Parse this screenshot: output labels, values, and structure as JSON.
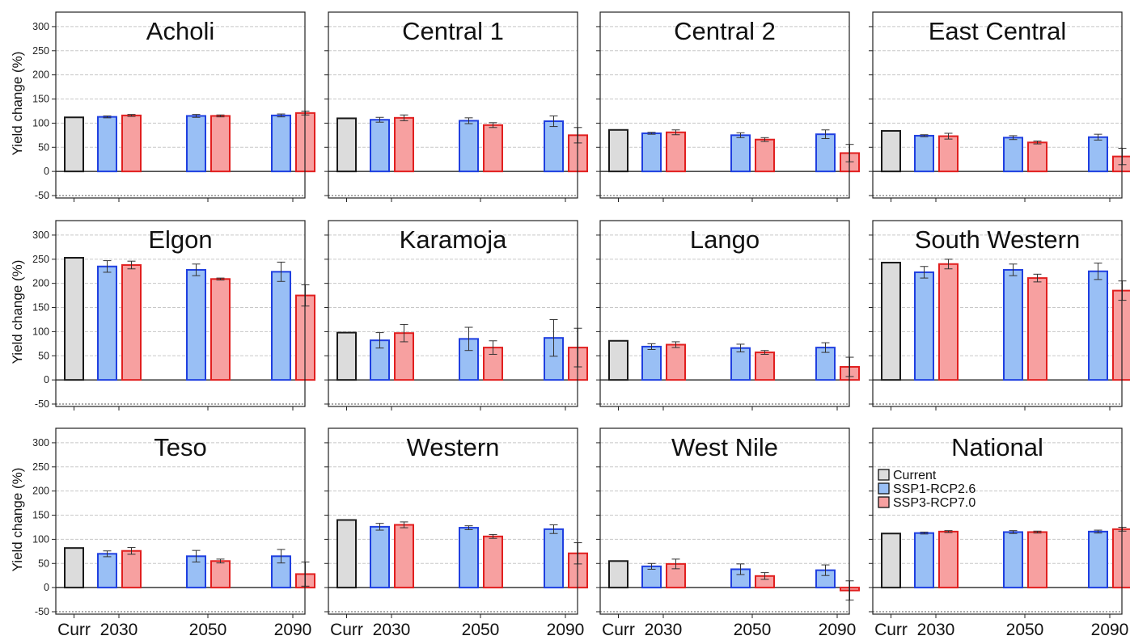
{
  "chart_data": {
    "type": "bar",
    "ylabel": "Yield change (%)",
    "ylim": [
      -55,
      330
    ],
    "yticks": [
      -50,
      0,
      50,
      100,
      150,
      200,
      250,
      300
    ],
    "grid": true,
    "categories": [
      "Curr",
      "2030",
      "2050",
      "2090"
    ],
    "legend": {
      "placement": "National panel, upper-left",
      "entries": [
        "Current",
        "SSP1-RCP2.6",
        "SSP3-RCP7.0"
      ]
    },
    "colors": {
      "current_fill": "#dcdcdc",
      "current_edge": "#1a1a1a",
      "ssp1_fill": "#99bff5",
      "ssp1_edge": "#1f3fe0",
      "ssp3_fill": "#f7a0a0",
      "ssp3_edge": "#e11f1f"
    },
    "panels": [
      {
        "title": "Acholi",
        "current": 112,
        "series": [
          {
            "name": "SSP1-RCP2.6",
            "values": [
              113,
              115,
              116
            ],
            "errors": [
              2,
              3,
              3
            ]
          },
          {
            "name": "SSP3-RCP7.0",
            "values": [
              116,
              115,
              121
            ],
            "errors": [
              2,
              2,
              4
            ]
          }
        ]
      },
      {
        "title": "Central 1",
        "current": 110,
        "series": [
          {
            "name": "SSP1-RCP2.6",
            "values": [
              107,
              105,
              104
            ],
            "errors": [
              5,
              6,
              11
            ]
          },
          {
            "name": "SSP3-RCP7.0",
            "values": [
              111,
              96,
              75
            ],
            "errors": [
              6,
              5,
              16
            ]
          }
        ]
      },
      {
        "title": "Central 2",
        "current": 86,
        "series": [
          {
            "name": "SSP1-RCP2.6",
            "values": [
              79,
              75,
              77
            ],
            "errors": [
              2,
              5,
              9
            ]
          },
          {
            "name": "SSP3-RCP7.0",
            "values": [
              81,
              66,
              38
            ],
            "errors": [
              5,
              4,
              18
            ]
          }
        ]
      },
      {
        "title": "East Central",
        "current": 84,
        "series": [
          {
            "name": "SSP1-RCP2.6",
            "values": [
              74,
              70,
              71
            ],
            "errors": [
              2,
              4,
              6
            ]
          },
          {
            "name": "SSP3-RCP7.0",
            "values": [
              73,
              60,
              31
            ],
            "errors": [
              6,
              3,
              17
            ]
          }
        ]
      },
      {
        "title": "Elgon",
        "current": 253,
        "series": [
          {
            "name": "SSP1-RCP2.6",
            "values": [
              235,
              228,
              224
            ],
            "errors": [
              12,
              12,
              20
            ]
          },
          {
            "name": "SSP3-RCP7.0",
            "values": [
              238,
              209,
              175
            ],
            "errors": [
              8,
              2,
              22
            ]
          }
        ]
      },
      {
        "title": "Karamoja",
        "current": 98,
        "series": [
          {
            "name": "SSP1-RCP2.6",
            "values": [
              82,
              85,
              87
            ],
            "errors": [
              16,
              24,
              38
            ]
          },
          {
            "name": "SSP3-RCP7.0",
            "values": [
              97,
              67,
              67
            ],
            "errors": [
              18,
              14,
              40
            ]
          }
        ]
      },
      {
        "title": "Lango",
        "current": 81,
        "series": [
          {
            "name": "SSP1-RCP2.6",
            "values": [
              69,
              66,
              67
            ],
            "errors": [
              6,
              8,
              10
            ]
          },
          {
            "name": "SSP3-RCP7.0",
            "values": [
              73,
              57,
              27
            ],
            "errors": [
              6,
              4,
              20
            ]
          }
        ]
      },
      {
        "title": "South Western",
        "current": 243,
        "series": [
          {
            "name": "SSP1-RCP2.6",
            "values": [
              223,
              228,
              225
            ],
            "errors": [
              12,
              12,
              17
            ]
          },
          {
            "name": "SSP3-RCP7.0",
            "values": [
              240,
              211,
              185
            ],
            "errors": [
              10,
              8,
              20
            ]
          }
        ]
      },
      {
        "title": "Teso",
        "current": 82,
        "series": [
          {
            "name": "SSP1-RCP2.6",
            "values": [
              70,
              65,
              65
            ],
            "errors": [
              6,
              12,
              14
            ]
          },
          {
            "name": "SSP3-RCP7.0",
            "values": [
              76,
              55,
              28
            ],
            "errors": [
              7,
              4,
              25
            ]
          }
        ]
      },
      {
        "title": "Western",
        "current": 140,
        "series": [
          {
            "name": "SSP1-RCP2.6",
            "values": [
              126,
              124,
              121
            ],
            "errors": [
              7,
              4,
              9
            ]
          },
          {
            "name": "SSP3-RCP7.0",
            "values": [
              130,
              106,
              71
            ],
            "errors": [
              6,
              4,
              22
            ]
          }
        ]
      },
      {
        "title": "West Nile",
        "current": 55,
        "series": [
          {
            "name": "SSP1-RCP2.6",
            "values": [
              44,
              38,
              36
            ],
            "errors": [
              6,
              11,
              11
            ]
          },
          {
            "name": "SSP3-RCP7.0",
            "values": [
              49,
              24,
              -6
            ],
            "errors": [
              10,
              7,
              20
            ]
          }
        ]
      },
      {
        "title": "National",
        "current": 112,
        "series": [
          {
            "name": "SSP1-RCP2.6",
            "values": [
              113,
              115,
              116
            ],
            "errors": [
              2,
              3,
              3
            ]
          },
          {
            "name": "SSP3-RCP7.0",
            "values": [
              116,
              115,
              121
            ],
            "errors": [
              2,
              2,
              4
            ]
          }
        ]
      }
    ]
  }
}
